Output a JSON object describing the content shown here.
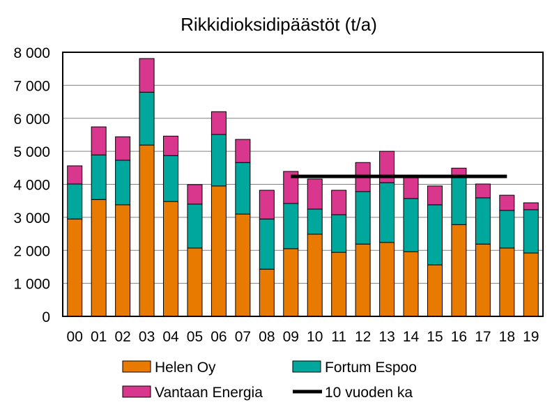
{
  "chart_data": {
    "type": "bar",
    "stacked": true,
    "title": "Rikkidioksidipäästöt (t/a)",
    "xlabel": "",
    "ylabel": "",
    "ylim": [
      0,
      8000
    ],
    "yticks": [
      0,
      1000,
      2000,
      3000,
      4000,
      5000,
      6000,
      7000,
      8000
    ],
    "ytick_labels": [
      "0",
      "1 000",
      "2 000",
      "3 000",
      "4 000",
      "5 000",
      "6 000",
      "7 000",
      "8 000"
    ],
    "grid": "horizontal",
    "legend_position": "bottom",
    "categories": [
      "00",
      "01",
      "02",
      "03",
      "04",
      "05",
      "06",
      "07",
      "08",
      "09",
      "10",
      "11",
      "12",
      "13",
      "14",
      "15",
      "16",
      "17",
      "18",
      "19"
    ],
    "series": [
      {
        "name": "Helen Oy",
        "color": "#E87A00",
        "values": [
          2950,
          3540,
          3380,
          5190,
          3480,
          2070,
          3950,
          3100,
          1430,
          2050,
          2490,
          1940,
          2190,
          2240,
          1960,
          1560,
          2780,
          2190,
          2070,
          1920
        ]
      },
      {
        "name": "Fortum Espoo",
        "color": "#00A79D",
        "values": [
          1060,
          1350,
          1350,
          1600,
          1390,
          1330,
          1560,
          1560,
          1520,
          1370,
          760,
          1140,
          1590,
          1810,
          1610,
          1820,
          1420,
          1400,
          1140,
          1310
        ]
      },
      {
        "name": "Vantaan Energia",
        "color": "#D9368E",
        "values": [
          550,
          850,
          710,
          1020,
          590,
          590,
          690,
          700,
          870,
          970,
          910,
          740,
          880,
          950,
          660,
          570,
          290,
          420,
          460,
          210
        ]
      }
    ],
    "line": {
      "name": "10 vuoden ka",
      "color": "#000000",
      "value": 4240,
      "from": "09",
      "to": "18"
    }
  }
}
